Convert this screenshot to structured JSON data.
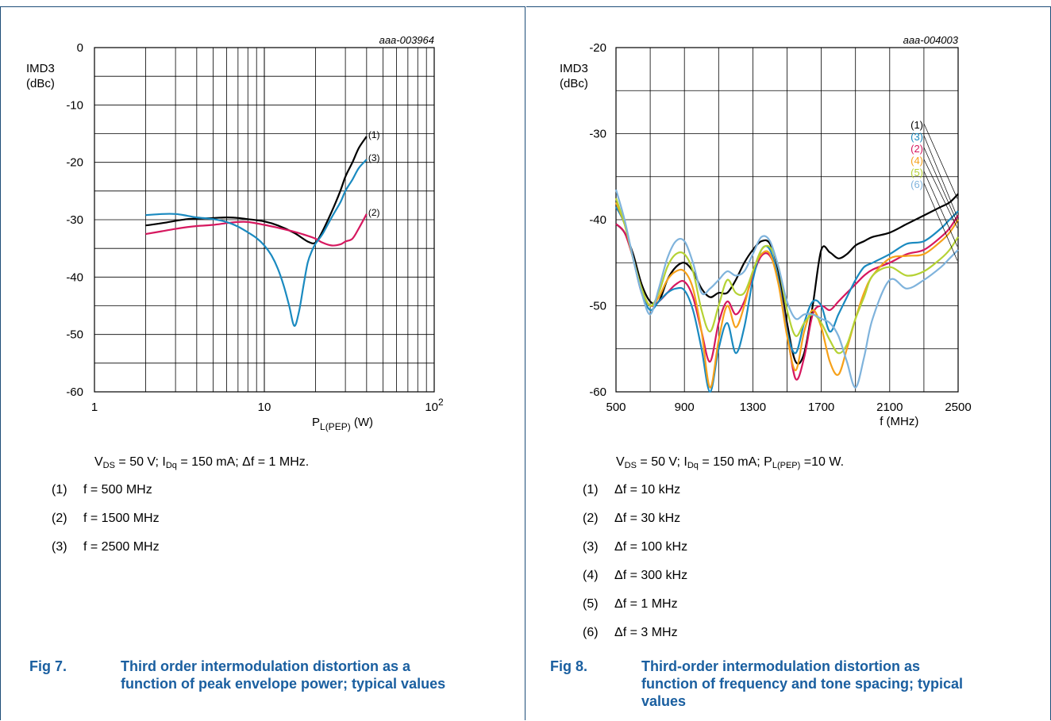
{
  "charts": [
    {
      "id": "fig7",
      "conditions": {
        "vds": "V",
        "vds_sub": "DS",
        "rest1": " = 50 V; I",
        "idq_sub": "Dq",
        "rest2": " = 150 mA; Δf = 1 MHz."
      },
      "legend": [
        {
          "num": "(1)",
          "text": "f = 500 MHz"
        },
        {
          "num": "(2)",
          "text": "f = 1500 MHz"
        },
        {
          "num": "(3)",
          "text": "f = 2500 MHz"
        }
      ],
      "caption": {
        "fig": "Fig 7.",
        "text": "Third order intermodulation distortion as a function of peak envelope power; typical values"
      }
    },
    {
      "id": "fig8",
      "conditions": {
        "vds": "V",
        "vds_sub": "DS",
        "rest1": " = 50 V; I",
        "idq_sub": "Dq",
        "rest2": " = 150 mA; P",
        "pl_sub": "L(PEP)",
        "rest3": " =10 W."
      },
      "legend": [
        {
          "num": "(1)",
          "text": "Δf = 10 kHz"
        },
        {
          "num": "(2)",
          "text": "Δf = 30 kHz"
        },
        {
          "num": "(3)",
          "text": "Δf = 100 kHz"
        },
        {
          "num": "(4)",
          "text": "Δf = 300 kHz"
        },
        {
          "num": "(5)",
          "text": "Δf = 1 MHz"
        },
        {
          "num": "(6)",
          "text": "Δf = 3 MHz"
        }
      ],
      "caption": {
        "fig": "Fig 8.",
        "text": "Third-order intermodulation distortion as function of frequency and tone spacing; typical values"
      }
    }
  ],
  "chart_data": [
    {
      "type": "line",
      "chart_id": "aaa-003964",
      "ylabel_line1": "IMD3",
      "ylabel_line2": "(dBc)",
      "xlabel_main": "P",
      "xlabel_sub": "L(PEP)",
      "xlabel_unit": " (W)",
      "xscale": "log",
      "xlim": [
        1,
        100
      ],
      "ylim": [
        -60,
        0
      ],
      "xtick_labels": [
        "1",
        "10",
        "10"
      ],
      "xtick_sup": "2",
      "yticks": [
        0,
        -10,
        -20,
        -30,
        -40,
        -50,
        -60
      ],
      "series": [
        {
          "name": "(1)",
          "color": "#000000",
          "x": [
            2,
            2.5,
            3,
            3.5,
            4,
            5,
            6,
            7,
            8,
            10,
            12,
            15,
            18,
            20,
            22,
            25,
            28,
            30,
            33,
            36,
            40
          ],
          "y": [
            -31.0,
            -30.6,
            -30.2,
            -29.9,
            -29.8,
            -29.7,
            -29.6,
            -29.7,
            -29.9,
            -30.3,
            -31.0,
            -32.3,
            -33.8,
            -34.0,
            -32.0,
            -28.5,
            -25.0,
            -22.5,
            -20.0,
            -17.5,
            -15.5
          ]
        },
        {
          "name": "(2)",
          "color": "#d6185f",
          "x": [
            2,
            2.5,
            3,
            3.5,
            4,
            5,
            6,
            7,
            8,
            10,
            12,
            15,
            18,
            20,
            22,
            25,
            28,
            30,
            33,
            36,
            40
          ],
          "y": [
            -32.5,
            -32.0,
            -31.6,
            -31.3,
            -31.1,
            -30.9,
            -30.6,
            -30.4,
            -30.4,
            -30.9,
            -31.4,
            -32.1,
            -32.8,
            -33.3,
            -34.0,
            -34.5,
            -34.3,
            -33.8,
            -33.3,
            -31.5,
            -29.0
          ]
        },
        {
          "name": "(3)",
          "color": "#1a8ac0",
          "x": [
            2,
            2.5,
            3,
            3.5,
            4,
            5,
            6,
            7,
            8,
            9,
            10,
            11,
            12,
            13,
            14,
            15,
            16,
            17,
            18,
            19,
            20,
            22,
            25,
            28,
            30,
            33,
            36,
            40
          ],
          "y": [
            -29.2,
            -29.0,
            -29.0,
            -29.3,
            -29.6,
            -29.9,
            -30.4,
            -31.2,
            -32.2,
            -33.2,
            -34.5,
            -36.2,
            -38.5,
            -41.5,
            -45.0,
            -48.5,
            -46.0,
            -41.5,
            -37.5,
            -35.5,
            -34.2,
            -32.5,
            -29.5,
            -27.0,
            -25.0,
            -23.0,
            -21.0,
            -19.5
          ]
        }
      ],
      "series_label_order": [
        "(1)",
        "(3)",
        "(2)"
      ]
    },
    {
      "type": "line",
      "chart_id": "aaa-004003",
      "ylabel_line1": "IMD3",
      "ylabel_line2": "(dBc)",
      "xlabel_line1": "f (MHz)",
      "xlim": [
        500,
        2500
      ],
      "ylim": [
        -60,
        -20
      ],
      "xticks": [
        500,
        900,
        1300,
        1700,
        2100,
        2500
      ],
      "yticks": [
        -20,
        -30,
        -40,
        -50,
        -60
      ],
      "series": [
        {
          "name": "(1)",
          "color": "#000000",
          "x": [
            500,
            550,
            600,
            650,
            700,
            750,
            800,
            850,
            900,
            950,
            1000,
            1050,
            1100,
            1150,
            1200,
            1250,
            1300,
            1350,
            1400,
            1450,
            1500,
            1550,
            1600,
            1650,
            1700,
            1750,
            1800,
            1850,
            1900,
            1950,
            2000,
            2100,
            2200,
            2300,
            2400,
            2450,
            2500
          ],
          "y": [
            -40.5,
            -41.5,
            -44.0,
            -47.5,
            -49.5,
            -49.5,
            -47.0,
            -45.5,
            -45.0,
            -46.0,
            -48.0,
            -49.0,
            -48.5,
            -48.5,
            -47.0,
            -45.0,
            -43.5,
            -42.5,
            -42.8,
            -46.0,
            -52.0,
            -56.5,
            -55.5,
            -50.0,
            -43.5,
            -43.8,
            -44.5,
            -44.0,
            -43.0,
            -42.5,
            -42.0,
            -41.5,
            -40.5,
            -39.5,
            -38.5,
            -38.0,
            -37.0
          ]
        },
        {
          "name": "(2)",
          "color": "#d6185f",
          "x": [
            500,
            550,
            600,
            650,
            700,
            750,
            800,
            850,
            900,
            950,
            1000,
            1050,
            1100,
            1150,
            1200,
            1250,
            1300,
            1350,
            1400,
            1450,
            1500,
            1550,
            1600,
            1650,
            1700,
            1750,
            1800,
            1850,
            1900,
            1950,
            2000,
            2100,
            2200,
            2300,
            2400,
            2450,
            2500
          ],
          "y": [
            -40.5,
            -41.5,
            -44.5,
            -48.5,
            -50.0,
            -49.5,
            -48.5,
            -47.5,
            -47.2,
            -49.0,
            -53.0,
            -56.5,
            -52.0,
            -49.5,
            -51.0,
            -49.5,
            -46.5,
            -44.2,
            -44.2,
            -47.0,
            -53.0,
            -58.5,
            -56.0,
            -51.0,
            -50.0,
            -50.5,
            -49.5,
            -48.5,
            -47.5,
            -46.5,
            -45.8,
            -45.0,
            -44.0,
            -43.5,
            -42.0,
            -41.0,
            -39.5
          ]
        },
        {
          "name": "(3)",
          "color": "#1a8ac0",
          "x": [
            500,
            550,
            600,
            650,
            700,
            750,
            800,
            850,
            900,
            950,
            1000,
            1050,
            1100,
            1150,
            1200,
            1250,
            1300,
            1350,
            1400,
            1450,
            1500,
            1550,
            1600,
            1650,
            1700,
            1750,
            1800,
            1850,
            1900,
            1950,
            2000,
            2100,
            2200,
            2300,
            2400,
            2450,
            2500
          ],
          "y": [
            -38.5,
            -40.5,
            -44.5,
            -48.5,
            -50.5,
            -49.5,
            -48.5,
            -48.0,
            -48.2,
            -50.5,
            -55.0,
            -60.0,
            -55.0,
            -52.0,
            -55.5,
            -52.5,
            -47.0,
            -43.5,
            -43.5,
            -47.0,
            -53.0,
            -55.5,
            -52.0,
            -49.5,
            -50.0,
            -53.0,
            -51.0,
            -49.0,
            -47.0,
            -45.5,
            -45.0,
            -44.0,
            -42.8,
            -42.5,
            -41.0,
            -40.0,
            -39.0
          ]
        },
        {
          "name": "(4)",
          "color": "#f6a11a",
          "x": [
            500,
            550,
            600,
            650,
            700,
            750,
            800,
            850,
            900,
            950,
            1000,
            1050,
            1100,
            1150,
            1200,
            1250,
            1300,
            1350,
            1400,
            1450,
            1500,
            1550,
            1600,
            1650,
            1700,
            1750,
            1800,
            1850,
            1900,
            1950,
            2000,
            2100,
            2200,
            2300,
            2400,
            2450,
            2500
          ],
          "y": [
            -38.0,
            -40.5,
            -44.5,
            -48.0,
            -50.0,
            -49.0,
            -47.0,
            -46.0,
            -46.0,
            -48.0,
            -53.0,
            -59.5,
            -54.0,
            -50.0,
            -52.5,
            -50.0,
            -46.0,
            -44.0,
            -44.0,
            -47.5,
            -53.5,
            -57.5,
            -53.0,
            -50.5,
            -52.5,
            -56.5,
            -58.0,
            -55.0,
            -51.5,
            -48.5,
            -46.5,
            -44.5,
            -44.2,
            -44.0,
            -42.5,
            -41.5,
            -40.0
          ]
        },
        {
          "name": "(5)",
          "color": "#b5d234",
          "x": [
            500,
            550,
            600,
            650,
            700,
            750,
            800,
            850,
            900,
            950,
            1000,
            1050,
            1100,
            1150,
            1200,
            1250,
            1300,
            1350,
            1400,
            1450,
            1500,
            1550,
            1600,
            1650,
            1700,
            1750,
            1800,
            1850,
            1900,
            1950,
            2000,
            2100,
            2200,
            2300,
            2400,
            2450,
            2500
          ],
          "y": [
            -37.5,
            -40.5,
            -44.5,
            -48.0,
            -50.0,
            -48.5,
            -45.5,
            -44.0,
            -44.0,
            -46.0,
            -50.5,
            -53.0,
            -50.0,
            -47.0,
            -48.5,
            -48.5,
            -46.0,
            -43.5,
            -43.2,
            -45.5,
            -50.5,
            -53.5,
            -52.0,
            -51.0,
            -52.0,
            -54.0,
            -55.5,
            -54.5,
            -51.5,
            -49.0,
            -46.5,
            -45.5,
            -46.5,
            -46.0,
            -44.5,
            -43.5,
            -42.0
          ]
        },
        {
          "name": "(6)",
          "color": "#7fb3dc",
          "x": [
            500,
            550,
            600,
            650,
            700,
            750,
            800,
            850,
            900,
            950,
            1000,
            1050,
            1100,
            1150,
            1200,
            1250,
            1300,
            1350,
            1400,
            1450,
            1500,
            1550,
            1600,
            1650,
            1700,
            1750,
            1800,
            1850,
            1900,
            1950,
            2000,
            2100,
            2200,
            2300,
            2400,
            2450,
            2500
          ],
          "y": [
            -36.5,
            -40.0,
            -44.5,
            -48.5,
            -51.0,
            -48.0,
            -44.5,
            -42.5,
            -42.5,
            -45.0,
            -48.5,
            -48.0,
            -47.0,
            -46.0,
            -46.5,
            -46.0,
            -44.0,
            -42.0,
            -42.5,
            -45.5,
            -49.5,
            -51.5,
            -51.0,
            -51.0,
            -51.5,
            -52.0,
            -53.5,
            -56.5,
            -59.5,
            -56.0,
            -51.5,
            -47.0,
            -48.0,
            -47.0,
            -45.5,
            -44.5,
            -43.5
          ]
        }
      ],
      "series_label_order": [
        "(1)",
        "(3)",
        "(2)",
        "(4)",
        "(5)",
        "(6)"
      ]
    }
  ]
}
